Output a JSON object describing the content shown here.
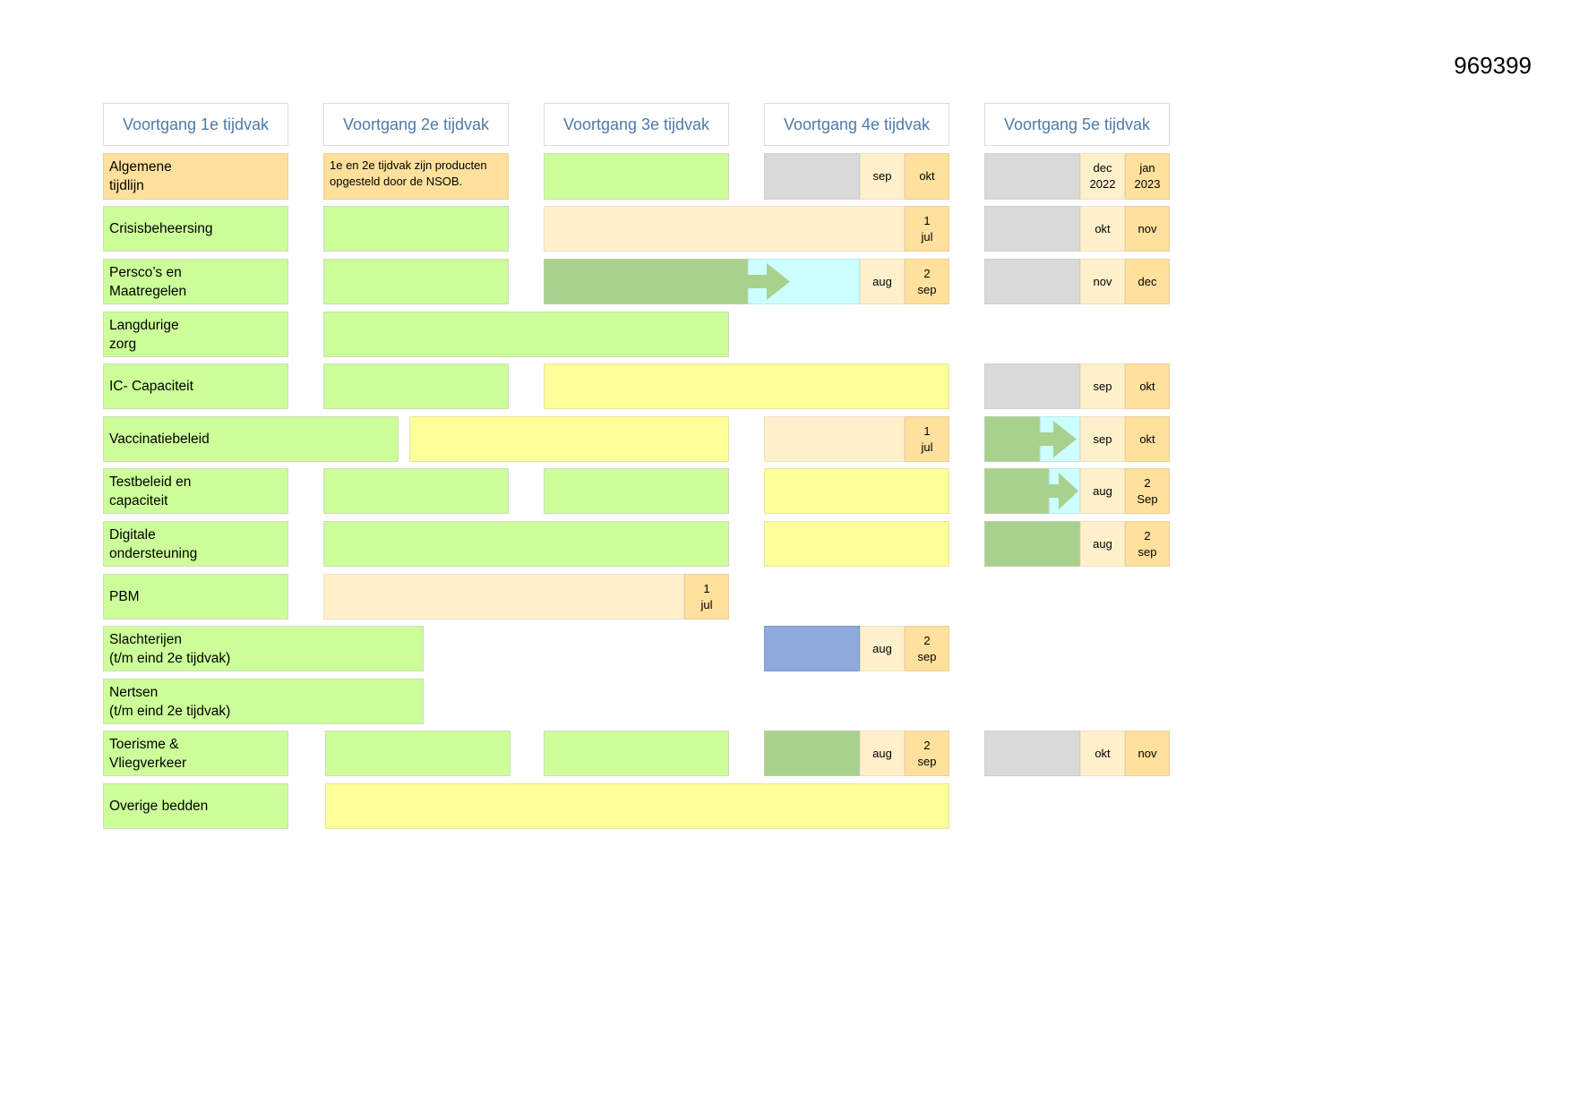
{
  "doc_id": "969399",
  "headers": [
    "Voortgang 1e tijdvak",
    "Voortgang 2e tijdvak",
    "Voortgang 3e tijdvak",
    "Voortgang 4e tijdvak",
    "Voortgang 5e tijdvak"
  ],
  "rows": {
    "algemene": {
      "label": "Algemene\ntijdlijn",
      "note": "1e en 2e tijdvak zijn producten opgesteld door de NSOB.",
      "d4a": "sep",
      "d4b": "okt",
      "d5a": "dec\n2022",
      "d5b": "jan\n2023"
    },
    "crisis": {
      "label": "Crisisbeheersing",
      "d3b": "1\njul",
      "d5a": "okt",
      "d5b": "nov"
    },
    "persco": {
      "label": "Persco’s en\nMaatregelen",
      "d4a": "aug",
      "d4b": "2\nsep",
      "d5a": "nov",
      "d5b": "dec"
    },
    "langdurige": {
      "label": "Langdurige\nzorg"
    },
    "ic": {
      "label": "IC- Capaciteit",
      "d5a": "sep",
      "d5b": "okt"
    },
    "vaccinatie": {
      "label": "Vaccinatiebeleid",
      "d4b": "1\njul",
      "d5a": "sep",
      "d5b": "okt"
    },
    "testbeleid": {
      "label": "Testbeleid en\ncapaciteit",
      "d5a": "aug",
      "d5b": "2\nSep"
    },
    "digitale": {
      "label": "Digitale\nondersteuning",
      "d5a": "aug",
      "d5b": "2\nsep"
    },
    "pbm": {
      "label": "PBM",
      "d2b": "1\njul"
    },
    "slachterijen": {
      "label": "Slachterijen\n(t/m eind 2e tijdvak)",
      "d4a": "aug",
      "d4b": "2\nsep"
    },
    "nertsen": {
      "label": "Nertsen\n(t/m eind 2e tijdvak)"
    },
    "toerisme": {
      "label": "Toerisme &\nVliegverkeer",
      "d4a": "aug",
      "d4b": "2\nsep",
      "d5a": "okt",
      "d5b": "nov"
    },
    "overige": {
      "label": "Overige bedden"
    }
  },
  "colors": {
    "done": "#ccff99",
    "done_dark": "#a9d18e",
    "in_progress": "#ffff99",
    "planned": "#fff0cc",
    "deadline": "#ffe09c",
    "not_started": "#d9d9d9",
    "transition": "#ccffff",
    "slaughter": "#8eaadb"
  },
  "icons": [
    "arrow-right-icon"
  ]
}
